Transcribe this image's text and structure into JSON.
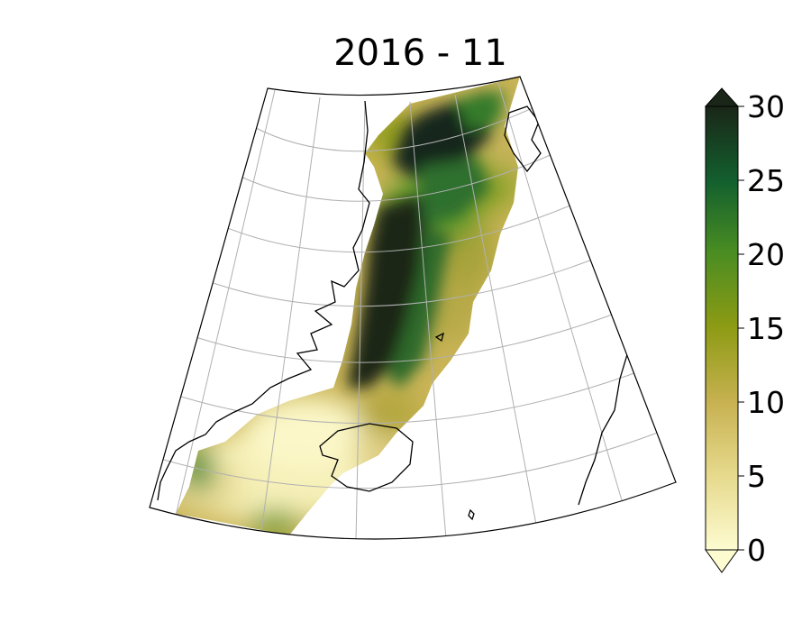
{
  "title": "2016 - 11",
  "colorbar": {
    "min": 0,
    "max": 30,
    "extend": "both",
    "ticks": [
      {
        "value": 0,
        "label": "0"
      },
      {
        "value": 5,
        "label": "5"
      },
      {
        "value": 10,
        "label": "10"
      },
      {
        "value": 15,
        "label": "15"
      },
      {
        "value": 20,
        "label": "20"
      },
      {
        "value": 25,
        "label": "25"
      },
      {
        "value": 30,
        "label": "30"
      }
    ],
    "colors": [
      "#fdfbd0",
      "#e6d98c",
      "#c8b252",
      "#8e9b14",
      "#4a8d22",
      "#13602e",
      "#1a2618"
    ]
  },
  "map": {
    "projection": "conic",
    "region": "Nordic Seas / Greenland Sea",
    "gridlines": true,
    "land_features": [
      "greenland-coast",
      "iceland",
      "svalbard",
      "norway-coast",
      "jan-mayen",
      "faroe-islands"
    ]
  }
}
